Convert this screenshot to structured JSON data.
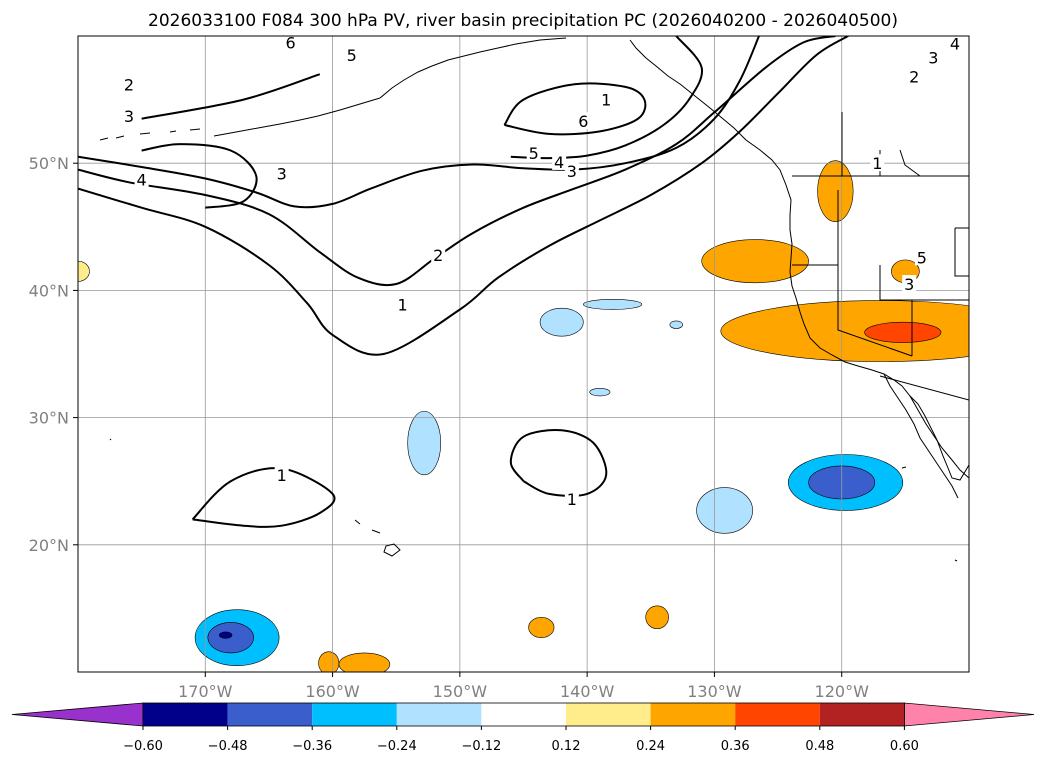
{
  "figure": {
    "title": "2026033100 F084 300 hPa PV, river basin precipitation PC (2026040200 - 2026040500)"
  },
  "chart_data": {
    "type": "map-contour",
    "title": "2026033100 F084 300 hPa PV, river basin precipitation PC (2026040200 - 2026040500)",
    "lon_range": [
      -180,
      -110
    ],
    "lat_range": [
      10,
      60
    ],
    "lon_ticks": [
      {
        "value": -170,
        "label": "170°W"
      },
      {
        "value": -160,
        "label": "160°W"
      },
      {
        "value": -150,
        "label": "150°W"
      },
      {
        "value": -140,
        "label": "140°W"
      },
      {
        "value": -130,
        "label": "130°W"
      },
      {
        "value": -120,
        "label": "120°W"
      }
    ],
    "lat_ticks": [
      {
        "value": 20,
        "label": "20°N"
      },
      {
        "value": 30,
        "label": "30°N"
      },
      {
        "value": 40,
        "label": "40°N"
      },
      {
        "value": 50,
        "label": "50°N"
      }
    ],
    "pv_contour_labels": [
      {
        "text": "6",
        "lon": -163.3,
        "lat": 59.5
      },
      {
        "text": "5",
        "lon": -158.5,
        "lat": 58.5
      },
      {
        "text": "2",
        "lon": -176,
        "lat": 56.2
      },
      {
        "text": "3",
        "lon": -176,
        "lat": 53.7
      },
      {
        "text": "4",
        "lon": -175,
        "lat": 48.7
      },
      {
        "text": "3",
        "lon": -164,
        "lat": 49.2
      },
      {
        "text": "6",
        "lon": -140.3,
        "lat": 53.3
      },
      {
        "text": "5",
        "lon": -144.2,
        "lat": 50.8
      },
      {
        "text": "4",
        "lon": -142.2,
        "lat": 50.1
      },
      {
        "text": "3",
        "lon": -141.2,
        "lat": 49.4
      },
      {
        "text": "2",
        "lon": -151.7,
        "lat": 42.8
      },
      {
        "text": "1",
        "lon": -154.5,
        "lat": 38.9
      },
      {
        "text": "1",
        "lon": -138.5,
        "lat": 55
      },
      {
        "text": "2",
        "lon": -114.3,
        "lat": 56.8
      },
      {
        "text": "3",
        "lon": -112.8,
        "lat": 58.3
      },
      {
        "text": "4",
        "lon": -111.1,
        "lat": 59.4
      },
      {
        "text": "1",
        "lon": -117.2,
        "lat": 50
      },
      {
        "text": "5",
        "lon": -113.7,
        "lat": 42.6
      },
      {
        "text": "3",
        "lon": -114.7,
        "lat": 40.5
      },
      {
        "text": "1",
        "lon": -141.2,
        "lat": 23.6
      },
      {
        "text": "1",
        "lon": -164,
        "lat": 25.5
      }
    ],
    "pv_contours": [
      {
        "level": 1,
        "lon": [
          -180,
          -175,
          -170,
          -165,
          -162,
          -160,
          -156,
          -150,
          -147,
          -143,
          -139,
          -135,
          -131,
          -128,
          -125,
          -122,
          -119.5
        ],
        "lat": [
          48,
          46.5,
          45,
          42,
          39,
          36.5,
          35,
          38.5,
          41,
          43.5,
          45.5,
          47.5,
          50,
          52.5,
          55.5,
          58.5,
          60
        ]
      },
      {
        "level": 2,
        "lon": [
          -180,
          -176,
          -170,
          -165,
          -161,
          -158,
          -155,
          -152,
          -149,
          -145,
          -141,
          -137,
          -133,
          -130,
          -126,
          -123,
          -120.5
        ],
        "lat": [
          49.5,
          48.5,
          47.5,
          46,
          43,
          41,
          40.5,
          42.5,
          44.5,
          46.5,
          48,
          49.5,
          51.5,
          54,
          57.5,
          59.5,
          60
        ]
      },
      {
        "level": 3,
        "lon": [
          -180,
          -175,
          -170,
          -166,
          -163,
          -160,
          -157,
          -153,
          -149,
          -145,
          -141,
          -137,
          -133,
          -130,
          -128,
          -126.5
        ],
        "lat": [
          50.5,
          49.7,
          48.8,
          47.7,
          46.6,
          46.8,
          48,
          49.4,
          49.9,
          49.6,
          49.5,
          50,
          51.2,
          53.5,
          56.5,
          60
        ]
      },
      {
        "level": 4,
        "lon": [
          -175,
          -172,
          -168,
          -166,
          -167,
          -170
        ],
        "lat": [
          51,
          51.5,
          51,
          49,
          47,
          46.5
        ]
      },
      {
        "level": 5,
        "lon": [
          -146,
          -143,
          -140,
          -137,
          -134,
          -132,
          -131,
          -133
        ],
        "lat": [
          50.5,
          50.4,
          50.6,
          51.4,
          53,
          55,
          57.5,
          60
        ]
      },
      {
        "level": 6,
        "lon": [
          -146.5,
          -143,
          -139,
          -136,
          -135.5,
          -137,
          -141,
          -145,
          -146.5
        ],
        "lat": [
          53,
          52.3,
          52.5,
          53.5,
          55,
          56,
          56.2,
          55,
          53
        ]
      },
      {
        "level": 1,
        "lon": [
          -175,
          -167,
          -161
        ],
        "lat": [
          53.5,
          55,
          57
        ]
      },
      {
        "level": 1,
        "lon": [
          -145,
          -143,
          -140,
          -138.5,
          -139.5,
          -142,
          -145,
          -146,
          -145
        ],
        "lat": [
          25,
          24,
          24,
          25.5,
          28,
          29,
          28.5,
          26.5,
          25
        ]
      },
      {
        "level": 1,
        "lon": [
          -171,
          -167,
          -164,
          -161,
          -160,
          -164,
          -168,
          -171
        ],
        "lat": [
          22,
          21.5,
          21.5,
          22.5,
          24,
          26,
          25,
          22
        ]
      }
    ],
    "precip_pc_levels": [
      -0.6,
      -0.48,
      -0.36,
      -0.24,
      -0.12,
      0.12,
      0.24,
      0.36,
      0.48,
      0.6
    ],
    "precip_pc_colors": [
      "#9932CC",
      "#00008B",
      "#3A5FCD",
      "#00BFFF",
      "#B0E2FF",
      "#FFFFFF",
      "#FFEC8B",
      "#FFA500",
      "#FF4500",
      "#B22222",
      "#FF82AB"
    ],
    "precip_pc_cells": [
      {
        "lon": -117,
        "lat": 36.8,
        "rx": 12.5,
        "ry": 2.4,
        "value": 0.24
      },
      {
        "lon": -115.2,
        "lat": 36.7,
        "rx": 3,
        "ry": 0.8,
        "value": 0.36
      },
      {
        "lon": -126.8,
        "lat": 42.3,
        "rx": 4.2,
        "ry": 1.7,
        "value": 0.24
      },
      {
        "lon": -120.5,
        "lat": 47.8,
        "rx": 1.4,
        "ry": 2.4,
        "value": 0.24
      },
      {
        "lon": -115,
        "lat": 41.5,
        "rx": 1.1,
        "ry": 0.9,
        "value": 0.24
      },
      {
        "lon": -119.7,
        "lat": 24.9,
        "rx": 4.5,
        "ry": 2.2,
        "value": -0.36
      },
      {
        "lon": -120,
        "lat": 24.9,
        "rx": 2.6,
        "ry": 1.3,
        "value": -0.48
      },
      {
        "lon": -129.2,
        "lat": 22.7,
        "rx": 2.2,
        "ry": 1.8,
        "value": -0.24
      },
      {
        "lon": -152.8,
        "lat": 28,
        "rx": 1.3,
        "ry": 2.5,
        "value": -0.24
      },
      {
        "lon": -142,
        "lat": 37.5,
        "rx": 1.7,
        "ry": 1.1,
        "value": -0.24
      },
      {
        "lon": -138,
        "lat": 38.9,
        "rx": 2.3,
        "ry": 0.4,
        "value": -0.24
      },
      {
        "lon": -133,
        "lat": 37.3,
        "rx": 0.5,
        "ry": 0.3,
        "value": -0.24
      },
      {
        "lon": -139,
        "lat": 32,
        "rx": 0.8,
        "ry": 0.3,
        "value": -0.24
      },
      {
        "lon": -167.5,
        "lat": 12.7,
        "rx": 3.3,
        "ry": 2.2,
        "value": -0.36
      },
      {
        "lon": -168,
        "lat": 12.7,
        "rx": 1.8,
        "ry": 1.2,
        "value": -0.48
      },
      {
        "lon": -168.4,
        "lat": 12.9,
        "rx": 0.5,
        "ry": 0.25,
        "value": -0.6
      },
      {
        "lon": -143.6,
        "lat": 13.5,
        "rx": 1,
        "ry": 0.8,
        "value": 0.24
      },
      {
        "lon": -134.5,
        "lat": 14.3,
        "rx": 0.9,
        "ry": 0.9,
        "value": 0.24
      },
      {
        "lon": -160.3,
        "lat": 10.7,
        "rx": 0.8,
        "ry": 0.9,
        "value": 0.24
      },
      {
        "lon": -157.5,
        "lat": 10.6,
        "rx": 2,
        "ry": 0.9,
        "value": 0.24
      },
      {
        "lon": -180,
        "lat": 41.5,
        "rx": 0.9,
        "ry": 0.8,
        "value": 0.12
      }
    ],
    "colorbar": {
      "extend": "both",
      "tick_labels": [
        "−0.60",
        "−0.48",
        "−0.36",
        "−0.24",
        "−0.12",
        "0.12",
        "0.24",
        "0.36",
        "0.48",
        "0.60"
      ]
    }
  }
}
